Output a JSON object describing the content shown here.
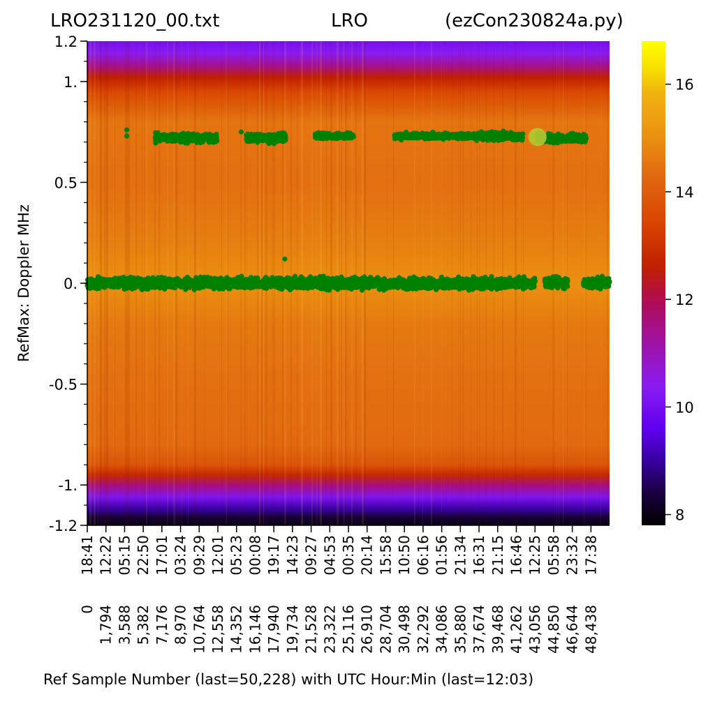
{
  "chart_data": {
    "type": "heatmap",
    "title_left": "LRO231120_00.txt",
    "title_center": "LRO",
    "title_right": "(ezCon230824a.py)",
    "xlabel": "Ref Sample Number (last=50,228) with UTC Hour:Min (last=12:03)",
    "ylabel": "RefMax:  Doppler MHz",
    "xlim": [
      0,
      50228
    ],
    "ylim": [
      -1.2,
      1.2
    ],
    "y_ticks": [
      {
        "value": 1.2,
        "label": "1.2"
      },
      {
        "value": 1.0,
        "label": "1."
      },
      {
        "value": 0.5,
        "label": "0.5"
      },
      {
        "value": 0.0,
        "label": "0."
      },
      {
        "value": -0.5,
        "label": "-0.5"
      },
      {
        "value": -1.0,
        "label": "-1."
      },
      {
        "value": -1.2,
        "label": "-1.2"
      }
    ],
    "x_ticks": [
      {
        "sample": 0,
        "label": "0",
        "utc": "18:41"
      },
      {
        "sample": 1794,
        "label": "1,794",
        "utc": "12:22"
      },
      {
        "sample": 3588,
        "label": "3,588",
        "utc": "05:15"
      },
      {
        "sample": 5382,
        "label": "5,382",
        "utc": "22:50"
      },
      {
        "sample": 7176,
        "label": "7,176",
        "utc": "17:01"
      },
      {
        "sample": 8970,
        "label": "8,970",
        "utc": "03:24"
      },
      {
        "sample": 10764,
        "label": "10,764",
        "utc": "09:29"
      },
      {
        "sample": 12558,
        "label": "12,558",
        "utc": "12:01"
      },
      {
        "sample": 14352,
        "label": "14,352",
        "utc": "05:23"
      },
      {
        "sample": 16146,
        "label": "16,146",
        "utc": "00:08"
      },
      {
        "sample": 17940,
        "label": "17,940",
        "utc": "19:17"
      },
      {
        "sample": 19734,
        "label": "19,734",
        "utc": "14:23"
      },
      {
        "sample": 21528,
        "label": "21,528",
        "utc": "09:27"
      },
      {
        "sample": 23322,
        "label": "23,322",
        "utc": "04:53"
      },
      {
        "sample": 25116,
        "label": "25,116",
        "utc": "00:35"
      },
      {
        "sample": 26910,
        "label": "26,910",
        "utc": "20:14"
      },
      {
        "sample": 28704,
        "label": "28,704",
        "utc": "15:58"
      },
      {
        "sample": 30498,
        "label": "30,498",
        "utc": "10:50"
      },
      {
        "sample": 32292,
        "label": "32,292",
        "utc": "06:16"
      },
      {
        "sample": 34086,
        "label": "34,086",
        "utc": "01:56"
      },
      {
        "sample": 35880,
        "label": "35,880",
        "utc": "21:34"
      },
      {
        "sample": 37674,
        "label": "37,674",
        "utc": "16:31"
      },
      {
        "sample": 39468,
        "label": "39,468",
        "utc": "21:15"
      },
      {
        "sample": 41262,
        "label": "41,262",
        "utc": "16:46"
      },
      {
        "sample": 43056,
        "label": "43,056",
        "utc": "12:25"
      },
      {
        "sample": 44850,
        "label": "44,850",
        "utc": "05:58"
      },
      {
        "sample": 46644,
        "label": "46,644",
        "utc": "23:32"
      },
      {
        "sample": 48438,
        "label": "48,438",
        "utc": "17:38"
      }
    ],
    "colorbar": {
      "range": [
        7.8,
        16.8
      ],
      "ticks": [
        8,
        10,
        12,
        14,
        16
      ],
      "colormap": "gnuplot2",
      "stops": [
        {
          "v": 7.8,
          "color": "#000000"
        },
        {
          "v": 8.4,
          "color": "#1a0040"
        },
        {
          "v": 9.0,
          "color": "#3800a0"
        },
        {
          "v": 9.6,
          "color": "#6000f0"
        },
        {
          "v": 10.4,
          "color": "#8a1cf0"
        },
        {
          "v": 11.4,
          "color": "#a41090"
        },
        {
          "v": 12.0,
          "color": "#b00c50"
        },
        {
          "v": 12.6,
          "color": "#c02000"
        },
        {
          "v": 13.4,
          "color": "#d84400"
        },
        {
          "v": 14.2,
          "color": "#e06410"
        },
        {
          "v": 15.0,
          "color": "#ea9010"
        },
        {
          "v": 15.8,
          "color": "#f0b010"
        },
        {
          "v": 16.3,
          "color": "#f8e000"
        },
        {
          "v": 16.8,
          "color": "#ffff00"
        }
      ]
    },
    "heatmap_profile": [
      {
        "y": 1.2,
        "value": 10.0
      },
      {
        "y": 1.14,
        "value": 10.4
      },
      {
        "y": 1.08,
        "value": 11.4
      },
      {
        "y": 1.02,
        "value": 12.6
      },
      {
        "y": 0.95,
        "value": 13.5
      },
      {
        "y": 0.8,
        "value": 14.5
      },
      {
        "y": 0.5,
        "value": 14.4
      },
      {
        "y": 0.2,
        "value": 14.7
      },
      {
        "y": 0.0,
        "value": 15.0
      },
      {
        "y": -0.2,
        "value": 14.6
      },
      {
        "y": -0.5,
        "value": 14.4
      },
      {
        "y": -0.8,
        "value": 14.3
      },
      {
        "y": -0.9,
        "value": 13.8
      },
      {
        "y": -0.95,
        "value": 12.8
      },
      {
        "y": -1.0,
        "value": 11.6
      },
      {
        "y": -1.06,
        "value": 10.2
      },
      {
        "y": -1.12,
        "value": 9.0
      },
      {
        "y": -1.16,
        "value": 8.3
      },
      {
        "y": -1.2,
        "value": 8.0
      }
    ],
    "series": [
      {
        "type": "scatter",
        "color": "#008000",
        "bands": [
          {
            "x_start": 0,
            "x_end": 43100,
            "y_center": 0.0,
            "y_spread": 0.04
          },
          {
            "x_start": 44000,
            "x_end": 46200,
            "y_center": 0.0,
            "y_spread": 0.04
          },
          {
            "x_start": 47700,
            "x_end": 50228,
            "y_center": 0.0,
            "y_spread": 0.04
          },
          {
            "x_start": 6500,
            "x_end": 12500,
            "y_center": 0.72,
            "y_spread": 0.03
          },
          {
            "x_start": 15300,
            "x_end": 19100,
            "y_center": 0.72,
            "y_spread": 0.03
          },
          {
            "x_start": 21900,
            "x_end": 25600,
            "y_center": 0.73,
            "y_spread": 0.02
          },
          {
            "x_start": 29500,
            "x_end": 37200,
            "y_center": 0.73,
            "y_spread": 0.02
          },
          {
            "x_start": 37400,
            "x_end": 41900,
            "y_center": 0.73,
            "y_spread": 0.03
          },
          {
            "x_start": 43200,
            "x_end": 48000,
            "y_center": 0.72,
            "y_spread": 0.03
          }
        ],
        "outliers": [
          {
            "x": 3800,
            "y": 0.76
          },
          {
            "x": 3800,
            "y": 0.73
          },
          {
            "x": 14800,
            "y": 0.75
          },
          {
            "x": 19000,
            "y": 0.12
          },
          {
            "x": 30200,
            "y": 0.71
          }
        ]
      },
      {
        "type": "marker",
        "color": "#b5c832",
        "points": [
          {
            "x": 43300,
            "y": 0.725
          }
        ]
      }
    ]
  }
}
